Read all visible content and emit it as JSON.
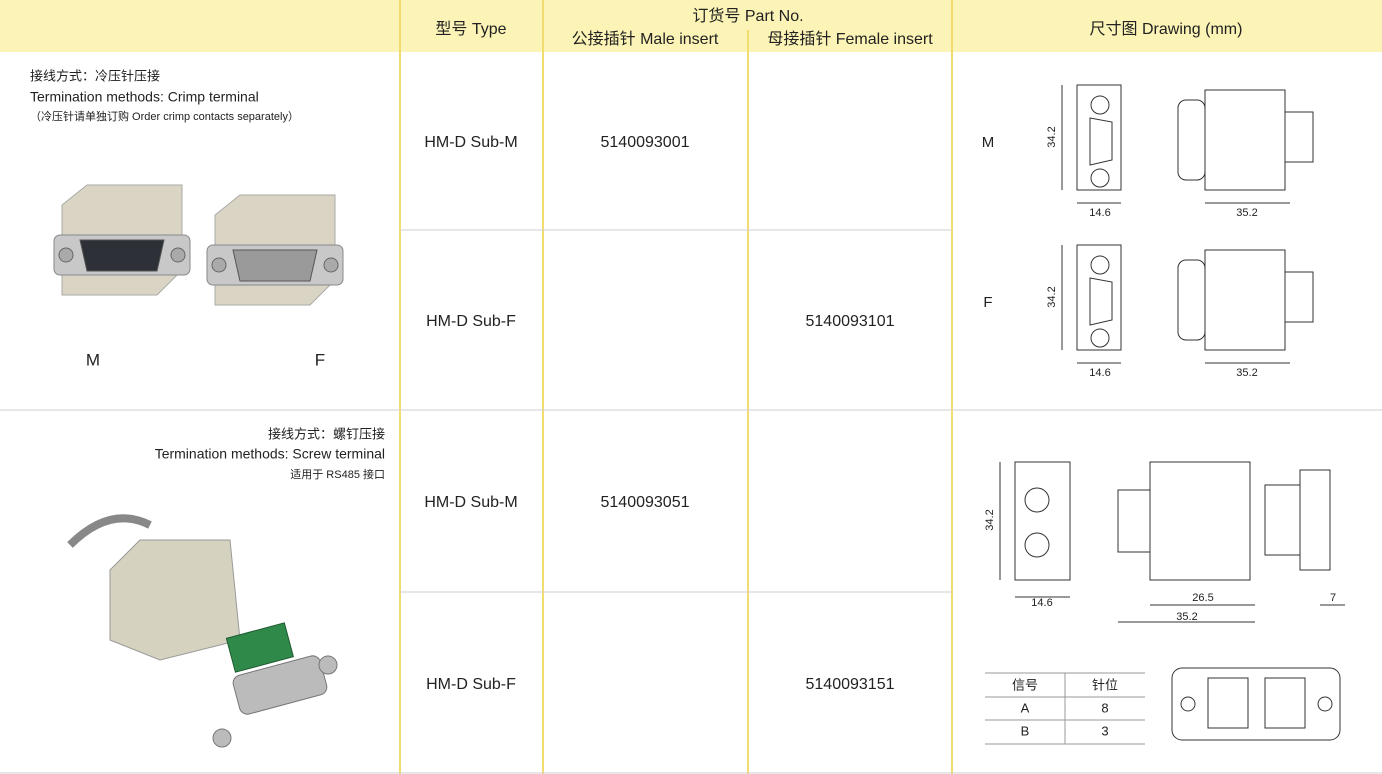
{
  "header": {
    "type": "型号 Type",
    "part_no": "订货号 Part No.",
    "male": "公接插针 Male insert",
    "female": "母接插针 Female insert",
    "drawing": "尺寸图 Drawing (mm)"
  },
  "groups": [
    {
      "termination_cn": "接线方式：冷压针压接",
      "termination_en": "Termination methods: Crimp terminal",
      "note": "（冷压针请单独订购 Order crimp contacts separately）",
      "photo_labels": [
        "M",
        "F"
      ],
      "rows": [
        {
          "type": "HM-D Sub-M",
          "male": "5140093001",
          "drawing_label": "M",
          "dimensions": [
            "34.2",
            "14.6",
            "35.2"
          ]
        },
        {
          "type": "HM-D Sub-F",
          "female": "5140093101",
          "drawing_label": "F",
          "dimensions": [
            "34.2",
            "14.6",
            "35.2"
          ]
        }
      ]
    },
    {
      "termination_cn": "接线方式：螺钉压接",
      "termination_en": "Termination methods: Screw terminal",
      "note": "适用于 RS485 接口",
      "rows": [
        {
          "type": "HM-D Sub-M",
          "male": "5140093051"
        },
        {
          "type": "HM-D Sub-F",
          "female": "5140093151"
        }
      ],
      "dimensions": [
        "34.2",
        "14.6",
        "26.5",
        "35.2",
        "7"
      ],
      "pin_table": {
        "headers": [
          "信号",
          "针位"
        ],
        "rows": [
          [
            "A",
            "8"
          ],
          [
            "B",
            "3"
          ]
        ]
      }
    }
  ]
}
